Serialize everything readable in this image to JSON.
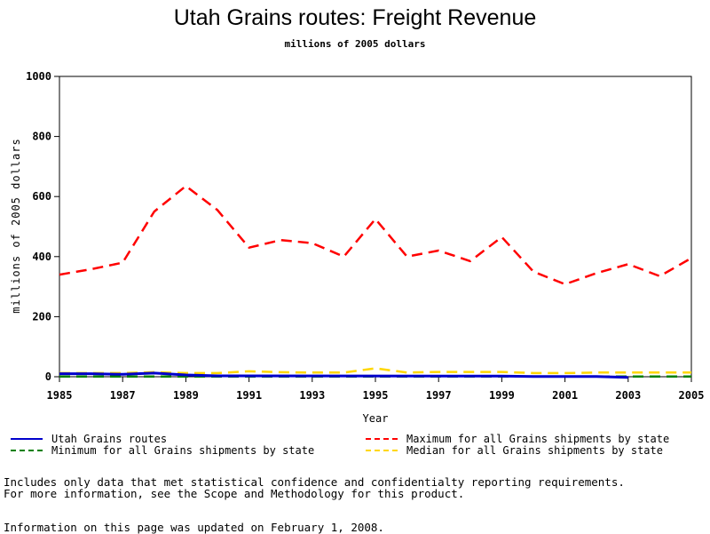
{
  "header": {
    "title": "Utah Grains routes: Freight Revenue",
    "subtitle": "millions of 2005 dollars"
  },
  "chart_data": {
    "type": "line",
    "xlabel": "Year",
    "ylabel": "millions of 2005 dollars",
    "xlim": [
      1985,
      2005
    ],
    "ylim": [
      0,
      1000
    ],
    "x_ticks": [
      "1985",
      "1987",
      "1989",
      "1991",
      "1993",
      "1995",
      "1997",
      "1999",
      "2001",
      "2003",
      "2005"
    ],
    "y_ticks": [
      "0",
      "200",
      "400",
      "600",
      "800",
      "1000"
    ],
    "x": [
      1985,
      1986,
      1987,
      1988,
      1989,
      1990,
      1991,
      1992,
      1993,
      1994,
      1995,
      1996,
      1997,
      1998,
      1999,
      2000,
      2001,
      2002,
      2003,
      2004,
      2005
    ],
    "series": [
      {
        "name": "Utah Grains routes",
        "color": "#0000cc",
        "style": "solid",
        "x": [
          1985,
          1986,
          1987,
          1988,
          1989,
          1990,
          1999,
          2000,
          2002,
          2003
        ],
        "values": [
          10,
          10,
          8,
          12,
          6,
          3,
          2,
          1,
          1,
          -2
        ]
      },
      {
        "name": "Maximum for all Grains shipments by state",
        "color": "#ff0000",
        "style": "dashed",
        "values": [
          340,
          358,
          380,
          550,
          635,
          555,
          430,
          455,
          445,
          400,
          525,
          400,
          420,
          385,
          465,
          350,
          308,
          345,
          375,
          335,
          395
        ]
      },
      {
        "name": "Minimum for all Grains shipments by state",
        "color": "#008000",
        "style": "dashed",
        "values": [
          1,
          1,
          1,
          1,
          1,
          1,
          1,
          1,
          1,
          1,
          1,
          1,
          1,
          1,
          1,
          1,
          1,
          1,
          1,
          1,
          1
        ]
      },
      {
        "name": "Median for all Grains shipments by state",
        "color": "#ffd700",
        "style": "dashed",
        "values": [
          12,
          12,
          12,
          15,
          12,
          12,
          18,
          15,
          14,
          14,
          28,
          14,
          16,
          16,
          16,
          12,
          12,
          14,
          14,
          14,
          14
        ]
      }
    ]
  },
  "legend": [
    {
      "label": "Utah Grains routes",
      "color": "#0000cc",
      "style": "solid"
    },
    {
      "label": "Maximum for all Grains shipments by state",
      "color": "#ff0000",
      "style": "dashed"
    },
    {
      "label": "Minimum for all Grains shipments by state",
      "color": "#008000",
      "style": "dashed"
    },
    {
      "label": "Median for all Grains shipments by state",
      "color": "#ffd700",
      "style": "dashed"
    }
  ],
  "notes": {
    "line1": "Includes only data that met statistical confidence and confidentialty reporting requirements.",
    "line2": "For more information, see the Scope and Methodology for this product.",
    "updated": "Information on this page was updated on February 1, 2008."
  }
}
